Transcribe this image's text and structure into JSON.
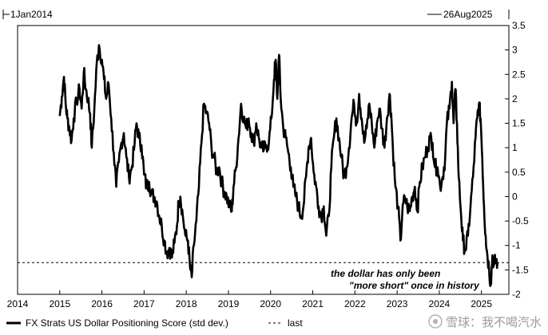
{
  "header": {
    "start_date": "1Jan2014",
    "end_date": "26Aug2025"
  },
  "watermark": "雪球：我不喝汽水",
  "chart_data": {
    "type": "line",
    "xlabel": "",
    "ylabel": "",
    "x_ticks": [
      "2014",
      "2015",
      "2016",
      "2017",
      "2018",
      "2019",
      "2020",
      "2021",
      "2022",
      "2023",
      "2024",
      "2025"
    ],
    "y_ticks": [
      "3.5",
      "3",
      "2.5",
      "2",
      "1.5",
      "1",
      "0.5",
      "0",
      "-0.5",
      "-1",
      "-1.5",
      "-2"
    ],
    "ylim": [
      -2,
      3.5
    ],
    "xlim": [
      2014.0,
      2025.65
    ],
    "grid": false,
    "legend_position": "bottom-left",
    "series": [
      {
        "name": "FX Strats US Dollar Positioning Score (std dev.)",
        "color": "#000000",
        "style": "solid",
        "points": [
          [
            2015.0,
            1.65
          ],
          [
            2015.05,
            2.05
          ],
          [
            2015.1,
            2.45
          ],
          [
            2015.14,
            1.9
          ],
          [
            2015.18,
            1.6
          ],
          [
            2015.23,
            1.4
          ],
          [
            2015.28,
            1.15
          ],
          [
            2015.33,
            1.6
          ],
          [
            2015.4,
            1.95
          ],
          [
            2015.47,
            2.2
          ],
          [
            2015.52,
            1.8
          ],
          [
            2015.57,
            2.55
          ],
          [
            2015.62,
            2.2
          ],
          [
            2015.67,
            2.0
          ],
          [
            2015.72,
            1.7
          ],
          [
            2015.76,
            1.0
          ],
          [
            2015.82,
            1.8
          ],
          [
            2015.88,
            2.75
          ],
          [
            2015.93,
            3.1
          ],
          [
            2016.0,
            2.8
          ],
          [
            2016.05,
            2.4
          ],
          [
            2016.1,
            2.0
          ],
          [
            2016.16,
            2.3
          ],
          [
            2016.22,
            1.6
          ],
          [
            2016.28,
            0.9
          ],
          [
            2016.34,
            0.2
          ],
          [
            2016.4,
            0.7
          ],
          [
            2016.46,
            1.1
          ],
          [
            2016.52,
            1.3
          ],
          [
            2016.58,
            0.8
          ],
          [
            2016.64,
            0.4
          ],
          [
            2016.7,
            0.55
          ],
          [
            2016.76,
            0.95
          ],
          [
            2016.82,
            1.5
          ],
          [
            2016.88,
            1.2
          ],
          [
            2016.94,
            1.05
          ],
          [
            2017.0,
            0.45
          ],
          [
            2017.06,
            0.2
          ],
          [
            2017.12,
            0.3
          ],
          [
            2017.18,
            0.05
          ],
          [
            2017.24,
            0.0
          ],
          [
            2017.3,
            -0.1
          ],
          [
            2017.36,
            -0.4
          ],
          [
            2017.42,
            -0.6
          ],
          [
            2017.48,
            -0.9
          ],
          [
            2017.54,
            -1.15
          ],
          [
            2017.6,
            -1.05
          ],
          [
            2017.66,
            -1.25
          ],
          [
            2017.72,
            -0.95
          ],
          [
            2017.78,
            -0.6
          ],
          [
            2017.82,
            -0.1
          ],
          [
            2017.86,
            0.0
          ],
          [
            2017.92,
            -0.4
          ],
          [
            2017.98,
            -0.8
          ],
          [
            2018.04,
            -0.9
          ],
          [
            2018.09,
            -1.45
          ],
          [
            2018.13,
            -1.65
          ],
          [
            2018.18,
            -1.0
          ],
          [
            2018.24,
            -0.5
          ],
          [
            2018.3,
            0.2
          ],
          [
            2018.36,
            1.1
          ],
          [
            2018.42,
            1.9
          ],
          [
            2018.48,
            1.7
          ],
          [
            2018.54,
            1.5
          ],
          [
            2018.6,
            1.0
          ],
          [
            2018.66,
            0.8
          ],
          [
            2018.72,
            0.5
          ],
          [
            2018.78,
            0.6
          ],
          [
            2018.84,
            0.3
          ],
          [
            2018.9,
            0.1
          ],
          [
            2018.96,
            0.0
          ],
          [
            2019.02,
            -0.2
          ],
          [
            2019.08,
            -0.3
          ],
          [
            2019.12,
            0.2
          ],
          [
            2019.18,
            0.6
          ],
          [
            2019.24,
            1.2
          ],
          [
            2019.3,
            1.9
          ],
          [
            2019.36,
            1.6
          ],
          [
            2019.42,
            1.4
          ],
          [
            2019.48,
            1.6
          ],
          [
            2019.54,
            1.3
          ],
          [
            2019.6,
            1.1
          ],
          [
            2019.66,
            1.5
          ],
          [
            2019.72,
            1.2
          ],
          [
            2019.78,
            1.0
          ],
          [
            2019.84,
            0.95
          ],
          [
            2019.9,
            1.05
          ],
          [
            2019.96,
            1.1
          ],
          [
            2020.02,
            1.6
          ],
          [
            2020.08,
            2.4
          ],
          [
            2020.12,
            2.8
          ],
          [
            2020.16,
            2.0
          ],
          [
            2020.2,
            2.9
          ],
          [
            2020.24,
            2.0
          ],
          [
            2020.3,
            1.4
          ],
          [
            2020.36,
            1.2
          ],
          [
            2020.42,
            0.9
          ],
          [
            2020.48,
            0.6
          ],
          [
            2020.54,
            0.2
          ],
          [
            2020.6,
            0.0
          ],
          [
            2020.66,
            -0.2
          ],
          [
            2020.72,
            -0.4
          ],
          [
            2020.78,
            -0.2
          ],
          [
            2020.84,
            0.4
          ],
          [
            2020.9,
            1.0
          ],
          [
            2020.96,
            1.2
          ],
          [
            2021.02,
            0.5
          ],
          [
            2021.08,
            0.2
          ],
          [
            2021.14,
            -0.2
          ],
          [
            2021.2,
            -0.4
          ],
          [
            2021.26,
            -0.2
          ],
          [
            2021.32,
            -0.8
          ],
          [
            2021.38,
            -0.4
          ],
          [
            2021.44,
            0.6
          ],
          [
            2021.5,
            1.2
          ],
          [
            2021.56,
            1.6
          ],
          [
            2021.62,
            1.2
          ],
          [
            2021.68,
            0.8
          ],
          [
            2021.74,
            0.4
          ],
          [
            2021.8,
            0.6
          ],
          [
            2021.86,
            1.0
          ],
          [
            2021.92,
            1.6
          ],
          [
            2021.98,
            1.9
          ],
          [
            2022.04,
            1.5
          ],
          [
            2022.1,
            2.1
          ],
          [
            2022.16,
            1.6
          ],
          [
            2022.22,
            1.1
          ],
          [
            2022.28,
            1.4
          ],
          [
            2022.34,
            1.9
          ],
          [
            2022.4,
            1.5
          ],
          [
            2022.46,
            1.0
          ],
          [
            2022.52,
            1.5
          ],
          [
            2022.58,
            1.8
          ],
          [
            2022.64,
            1.4
          ],
          [
            2022.7,
            1.0
          ],
          [
            2022.76,
            1.6
          ],
          [
            2022.82,
            2.1
          ],
          [
            2022.86,
            1.7
          ],
          [
            2022.9,
            1.0
          ],
          [
            2022.96,
            0.2
          ],
          [
            2023.02,
            -0.2
          ],
          [
            2023.08,
            -0.9
          ],
          [
            2023.12,
            -0.4
          ],
          [
            2023.18,
            0.0
          ],
          [
            2023.24,
            -0.2
          ],
          [
            2023.3,
            -0.3
          ],
          [
            2023.36,
            0.0
          ],
          [
            2023.42,
            0.2
          ],
          [
            2023.48,
            -0.3
          ],
          [
            2023.54,
            0.3
          ],
          [
            2023.6,
            0.6
          ],
          [
            2023.66,
            0.8
          ],
          [
            2023.72,
            1.0
          ],
          [
            2023.78,
            1.2
          ],
          [
            2023.84,
            1.1
          ],
          [
            2023.9,
            0.6
          ],
          [
            2023.96,
            0.6
          ],
          [
            2024.02,
            0.2
          ],
          [
            2024.08,
            0.4
          ],
          [
            2024.14,
            0.8
          ],
          [
            2024.18,
            1.5
          ],
          [
            2024.24,
            1.8
          ],
          [
            2024.3,
            2.35
          ],
          [
            2024.34,
            1.5
          ],
          [
            2024.38,
            2.2
          ],
          [
            2024.42,
            1.5
          ],
          [
            2024.46,
            0.4
          ],
          [
            2024.52,
            -0.4
          ],
          [
            2024.56,
            -0.9
          ],
          [
            2024.62,
            -1.1
          ],
          [
            2024.68,
            -0.8
          ],
          [
            2024.74,
            -0.2
          ],
          [
            2024.8,
            0.4
          ],
          [
            2024.86,
            1.2
          ],
          [
            2024.9,
            1.6
          ],
          [
            2024.94,
            1.9
          ],
          [
            2024.98,
            1.6
          ],
          [
            2025.02,
            0.8
          ],
          [
            2025.06,
            -0.2
          ],
          [
            2025.1,
            -0.8
          ],
          [
            2025.14,
            -1.2
          ],
          [
            2025.18,
            -1.45
          ],
          [
            2025.22,
            -1.8
          ],
          [
            2025.26,
            -1.2
          ],
          [
            2025.3,
            -1.4
          ],
          [
            2025.34,
            -1.3
          ],
          [
            2025.38,
            -1.35
          ]
        ]
      },
      {
        "name": "last",
        "color": "#000000",
        "style": "dashed",
        "points": [
          [
            2014.0,
            -1.35
          ],
          [
            2025.65,
            -1.35
          ]
        ]
      }
    ],
    "annotations": [
      "the dollar has only been",
      "\"more short\"  once in history"
    ]
  }
}
